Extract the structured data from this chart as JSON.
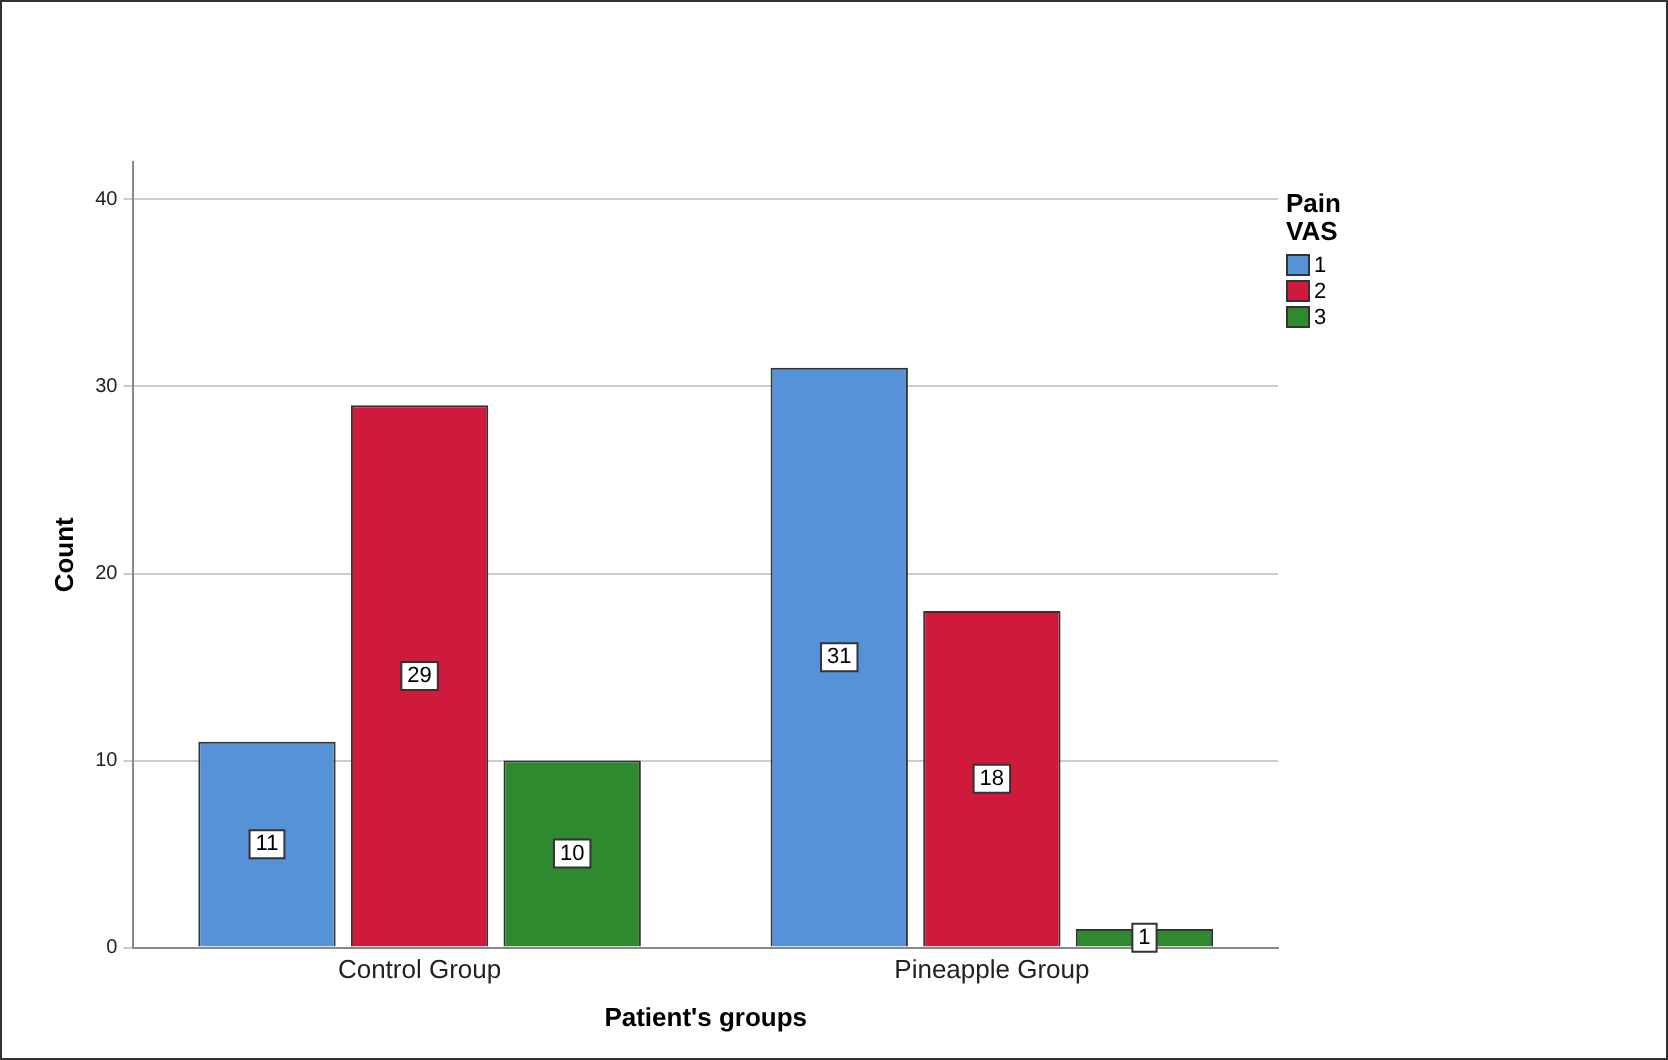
{
  "chart_data": {
    "type": "bar",
    "xlabel": "Patient's groups",
    "ylabel": "Count",
    "legend_title": "Pain VAS",
    "categories": [
      "Control Group",
      "Pineapple Group"
    ],
    "series": [
      {
        "name": "1",
        "color": "#5592d8",
        "values": [
          11,
          31
        ]
      },
      {
        "name": "2",
        "color": "#cf1a3c",
        "values": [
          29,
          18
        ]
      },
      {
        "name": "3",
        "color": "#2f8a2f",
        "values": [
          10,
          1
        ]
      }
    ],
    "ylim": [
      0,
      42
    ],
    "yticks": [
      0,
      10,
      20,
      30,
      40
    ],
    "grid": "y",
    "legend": "top right",
    "data_labels": true
  }
}
